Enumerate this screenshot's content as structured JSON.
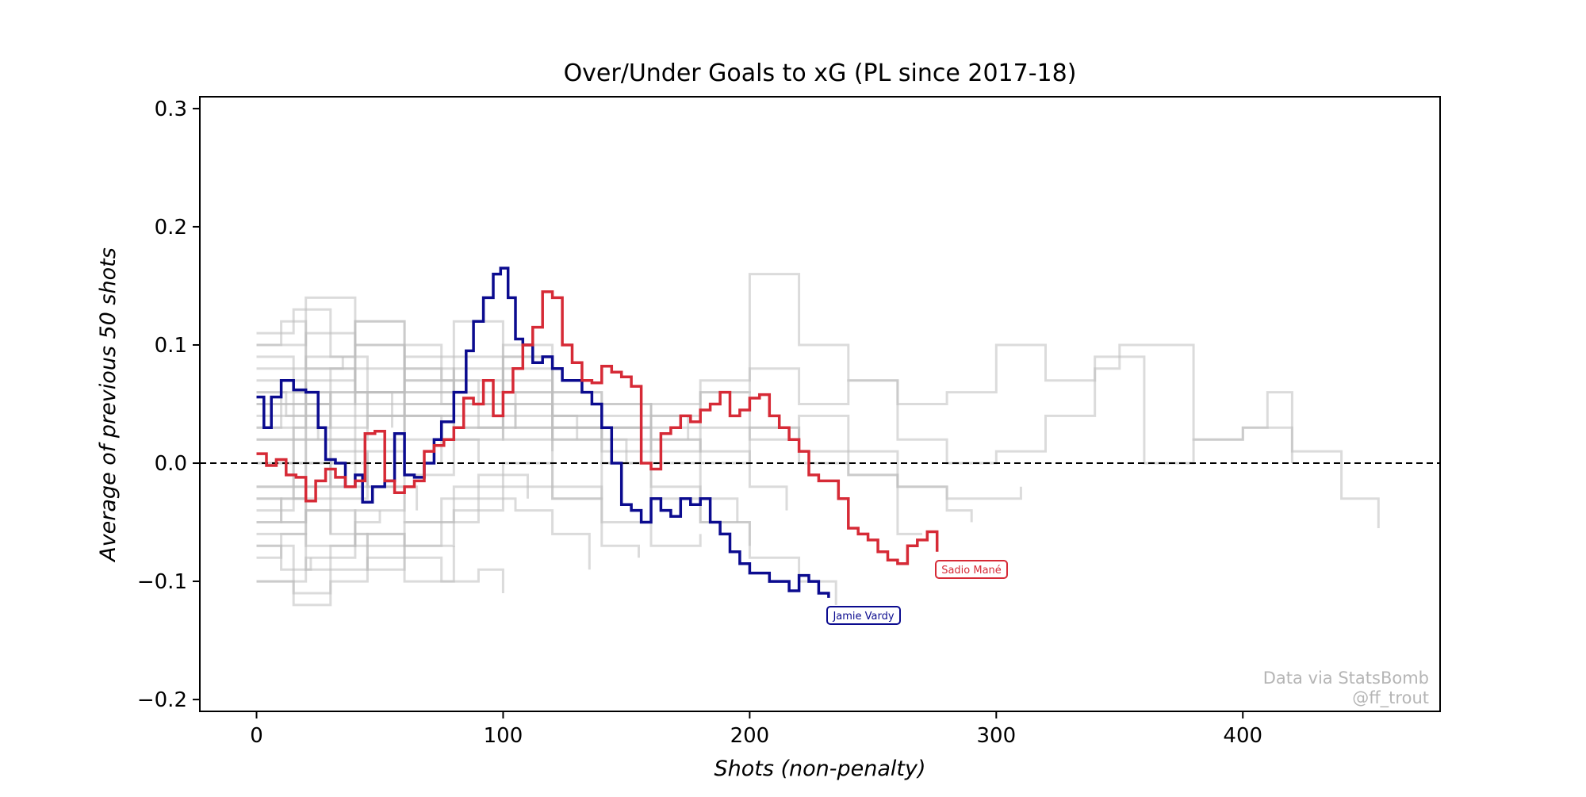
{
  "chart_data": {
    "type": "line",
    "title": "Over/Under Goals to xG (PL since 2017-18)",
    "xlabel": "Shots (non-penalty)",
    "ylabel": "Average of previous 50 shots",
    "xlim": [
      -23,
      480
    ],
    "ylim": [
      -0.21,
      0.31
    ],
    "x_ticks": [
      0,
      100,
      200,
      300,
      400
    ],
    "x_tick_labels": [
      "0",
      "100",
      "200",
      "300",
      "400"
    ],
    "y_ticks": [
      -0.2,
      -0.1,
      0.0,
      0.1,
      0.2,
      0.3
    ],
    "y_tick_labels": [
      "−0.2",
      "−0.1",
      "0.0",
      "0.1",
      "0.2",
      "0.3"
    ],
    "reference_line": {
      "y": 0.0,
      "style": "dashed",
      "color": "#000000"
    },
    "grid": false,
    "legend": "none",
    "background_series_color": "#bdbdbd",
    "highlighted_series": [
      {
        "name": "Jamie Vardy",
        "color": "#0b0b8f",
        "x": [
          0,
          3,
          6,
          10,
          15,
          20,
          25,
          28,
          32,
          36,
          40,
          43,
          47,
          52,
          56,
          60,
          64,
          68,
          72,
          75,
          80,
          85,
          88,
          92,
          96,
          99,
          102,
          105,
          108,
          112,
          116,
          120,
          124,
          128,
          132,
          136,
          140,
          144,
          148,
          152,
          156,
          160,
          164,
          168,
          172,
          176,
          180,
          184,
          188,
          192,
          196,
          200,
          204,
          208,
          212,
          216,
          220,
          224,
          228,
          232
        ],
        "y": [
          0.056,
          0.03,
          0.056,
          0.07,
          0.062,
          0.06,
          0.03,
          0.003,
          0.0,
          -0.02,
          -0.01,
          -0.033,
          -0.02,
          -0.015,
          0.025,
          -0.01,
          -0.012,
          0.0,
          0.02,
          0.035,
          0.06,
          0.095,
          0.12,
          0.14,
          0.16,
          0.165,
          0.14,
          0.105,
          0.1,
          0.085,
          0.09,
          0.08,
          0.07,
          0.07,
          0.06,
          0.05,
          0.03,
          0.0,
          -0.035,
          -0.04,
          -0.05,
          -0.03,
          -0.04,
          -0.045,
          -0.03,
          -0.035,
          -0.03,
          -0.05,
          -0.06,
          -0.075,
          -0.085,
          -0.093,
          -0.093,
          -0.1,
          -0.1,
          -0.108,
          -0.095,
          -0.1,
          -0.11,
          -0.114
        ]
      },
      {
        "name": "Sadio Mané",
        "color": "#d62a36",
        "x": [
          0,
          4,
          8,
          12,
          16,
          20,
          24,
          28,
          32,
          36,
          40,
          44,
          48,
          52,
          56,
          60,
          64,
          68,
          72,
          76,
          80,
          84,
          88,
          92,
          96,
          100,
          104,
          108,
          112,
          116,
          120,
          124,
          128,
          132,
          136,
          140,
          144,
          148,
          152,
          156,
          160,
          164,
          168,
          172,
          176,
          180,
          184,
          188,
          192,
          196,
          200,
          204,
          208,
          212,
          216,
          220,
          224,
          228,
          232,
          236,
          240,
          244,
          248,
          252,
          256,
          260,
          264,
          268,
          272,
          276
        ],
        "y": [
          0.008,
          -0.002,
          0.003,
          -0.01,
          -0.012,
          -0.032,
          -0.015,
          -0.005,
          -0.012,
          -0.02,
          -0.015,
          0.025,
          0.027,
          -0.015,
          -0.025,
          -0.02,
          -0.015,
          0.01,
          0.015,
          0.02,
          0.03,
          0.055,
          0.05,
          0.07,
          0.04,
          0.06,
          0.08,
          0.1,
          0.115,
          0.145,
          0.14,
          0.1,
          0.085,
          0.07,
          0.068,
          0.082,
          0.077,
          0.073,
          0.065,
          0.0,
          -0.005,
          0.025,
          0.03,
          0.04,
          0.035,
          0.045,
          0.05,
          0.06,
          0.04,
          0.045,
          0.055,
          0.058,
          0.04,
          0.03,
          0.02,
          0.01,
          -0.01,
          -0.015,
          -0.015,
          -0.03,
          -0.055,
          -0.06,
          -0.065,
          -0.075,
          -0.082,
          -0.085,
          -0.07,
          -0.065,
          -0.058,
          -0.075
        ]
      }
    ],
    "background_series": [
      {
        "x": [
          0,
          20,
          40,
          60,
          80,
          100,
          120,
          140,
          160,
          180,
          200,
          210,
          220,
          240,
          260,
          280,
          300,
          320,
          340,
          360,
          380,
          400,
          410,
          420,
          440,
          455
        ],
        "y": [
          0.02,
          0.05,
          0.08,
          0.04,
          0.06,
          0.09,
          0.05,
          0.03,
          0.05,
          0.07,
          0.16,
          0.16,
          0.1,
          0.07,
          0.05,
          0.06,
          0.1,
          0.07,
          0.09,
          0.0,
          0.02,
          0.03,
          0.06,
          0.01,
          -0.03,
          -0.055
        ]
      },
      {
        "x": [
          0,
          20,
          40,
          60,
          80,
          100,
          120,
          140,
          160,
          180,
          200,
          220,
          240,
          260,
          280,
          300,
          320,
          340,
          350,
          380,
          400,
          420
        ],
        "y": [
          -0.02,
          0.02,
          0.04,
          0.05,
          0.07,
          0.09,
          0.06,
          0.05,
          0.04,
          0.06,
          0.08,
          0.05,
          0.07,
          0.02,
          0.0,
          0.01,
          0.04,
          0.08,
          0.1,
          0.02,
          0.03,
          0.0
        ]
      },
      {
        "x": [
          0,
          20,
          40,
          60,
          80,
          100,
          120,
          140,
          160,
          180,
          200,
          220,
          240,
          260,
          280,
          300,
          310
        ],
        "y": [
          0.03,
          0.06,
          0.12,
          0.07,
          0.04,
          0.02,
          0.03,
          0.05,
          0.02,
          0.0,
          0.03,
          0.01,
          -0.01,
          -0.02,
          -0.03,
          -0.03,
          -0.02
        ]
      },
      {
        "x": [
          0,
          20,
          40,
          60,
          80,
          100,
          120,
          140,
          160,
          180,
          200,
          220,
          240,
          260,
          280,
          290
        ],
        "y": [
          0.05,
          0.07,
          0.1,
          0.06,
          0.05,
          0.08,
          0.04,
          0.02,
          0.01,
          0.03,
          0.02,
          0.04,
          0.01,
          -0.02,
          -0.04,
          -0.05
        ]
      },
      {
        "x": [
          0,
          20,
          40,
          60,
          80,
          100,
          120,
          140,
          160,
          180,
          200,
          220,
          240,
          260,
          270
        ],
        "y": [
          0.0,
          0.04,
          0.06,
          0.04,
          0.08,
          0.04,
          0.02,
          0.01,
          0.03,
          0.06,
          0.03,
          0.0,
          -0.01,
          -0.06,
          -0.06
        ]
      },
      {
        "x": [
          0,
          20,
          40,
          60,
          80,
          100,
          120,
          140,
          160,
          180,
          200,
          220,
          235
        ],
        "y": [
          -0.05,
          -0.02,
          0.02,
          0.05,
          0.03,
          0.06,
          0.03,
          0.0,
          -0.02,
          -0.05,
          -0.08,
          -0.1,
          -0.12
        ]
      },
      {
        "x": [
          0,
          20,
          40,
          60,
          80,
          100,
          120,
          140,
          160,
          180,
          200,
          215
        ],
        "y": [
          0.08,
          0.11,
          0.06,
          0.09,
          0.12,
          0.05,
          0.03,
          0.04,
          0.02,
          0.01,
          -0.02,
          -0.04
        ]
      },
      {
        "x": [
          0,
          20,
          40,
          60,
          80,
          100,
          120,
          140,
          160,
          180,
          200
        ],
        "y": [
          -0.1,
          -0.08,
          -0.06,
          -0.07,
          -0.04,
          -0.02,
          -0.03,
          0.0,
          -0.03,
          -0.05,
          -0.07
        ]
      },
      {
        "x": [
          0,
          20,
          40,
          60,
          80,
          100,
          120,
          140,
          160,
          180,
          195
        ],
        "y": [
          0.1,
          0.14,
          0.1,
          0.06,
          0.03,
          0.05,
          0.02,
          0.03,
          0.0,
          -0.03,
          -0.05
        ]
      },
      {
        "x": [
          0,
          20,
          40,
          60,
          80,
          100,
          120,
          140,
          160,
          180
        ],
        "y": [
          -0.03,
          -0.07,
          -0.04,
          -0.01,
          0.02,
          0.03,
          -0.02,
          -0.05,
          -0.07,
          -0.06
        ]
      },
      {
        "x": [
          0,
          20,
          40,
          60,
          80,
          100,
          120,
          140,
          160,
          175
        ],
        "y": [
          0.06,
          0.08,
          0.05,
          0.07,
          0.09,
          0.1,
          0.06,
          0.03,
          0.04,
          0.02
        ]
      },
      {
        "x": [
          0,
          20,
          40,
          60,
          80,
          100,
          120,
          140,
          155
        ],
        "y": [
          -0.06,
          -0.04,
          -0.07,
          -0.05,
          -0.02,
          0.0,
          -0.03,
          -0.07,
          -0.08
        ]
      },
      {
        "x": [
          0,
          20,
          40,
          60,
          80,
          100,
          120,
          140,
          150
        ],
        "y": [
          0.04,
          0.09,
          0.12,
          0.08,
          0.05,
          0.07,
          0.04,
          0.02,
          0.0
        ]
      },
      {
        "x": [
          0,
          15,
          30,
          45,
          60,
          75,
          90,
          105,
          120,
          135
        ],
        "y": [
          0.0,
          -0.03,
          -0.06,
          -0.09,
          -0.07,
          -0.05,
          -0.03,
          -0.04,
          -0.06,
          -0.09
        ]
      },
      {
        "x": [
          0,
          15,
          30,
          45,
          60,
          75,
          90,
          105,
          120,
          130
        ],
        "y": [
          0.11,
          0.13,
          0.09,
          0.06,
          0.08,
          0.05,
          0.03,
          0.06,
          0.04,
          0.02
        ]
      },
      {
        "x": [
          0,
          15,
          30,
          45,
          60,
          75,
          90,
          100
        ],
        "y": [
          -0.07,
          -0.11,
          -0.09,
          -0.06,
          -0.08,
          -0.1,
          -0.09,
          -0.11
        ]
      },
      {
        "x": [
          0,
          15,
          30,
          45,
          60,
          75,
          90,
          105,
          120
        ],
        "y": [
          0.07,
          0.05,
          0.03,
          0.06,
          0.1,
          0.07,
          0.05,
          0.03,
          0.01
        ]
      },
      {
        "x": [
          0,
          15,
          30,
          45,
          60,
          75,
          90,
          110
        ],
        "y": [
          -0.04,
          -0.02,
          0.01,
          -0.02,
          -0.05,
          -0.03,
          -0.01,
          -0.03
        ]
      },
      {
        "x": [
          0,
          15,
          30,
          45,
          60,
          75,
          90
        ],
        "y": [
          0.02,
          0.0,
          -0.03,
          0.01,
          0.04,
          0.02,
          0.0
        ]
      },
      {
        "x": [
          0,
          15,
          30,
          45,
          60,
          80
        ],
        "y": [
          -0.1,
          -0.12,
          -0.1,
          -0.08,
          -0.1,
          -0.07
        ]
      },
      {
        "x": [
          0,
          15,
          30,
          45,
          60,
          75
        ],
        "y": [
          0.09,
          0.06,
          0.02,
          0.04,
          0.02,
          0.0
        ]
      },
      {
        "x": [
          0,
          15,
          30,
          45,
          60
        ],
        "y": [
          -0.02,
          0.03,
          0.06,
          0.04,
          0.06
        ]
      },
      {
        "x": [
          0,
          15,
          30,
          45,
          65
        ],
        "y": [
          0.05,
          0.02,
          0.0,
          -0.02,
          -0.04
        ]
      },
      {
        "x": [
          0,
          10,
          20,
          30,
          40,
          50
        ],
        "y": [
          -0.08,
          -0.06,
          -0.09,
          -0.07,
          -0.05,
          -0.04
        ]
      },
      {
        "x": [
          0,
          10,
          20,
          30,
          40,
          55
        ],
        "y": [
          0.03,
          0.07,
          0.05,
          0.08,
          0.06,
          0.03
        ]
      },
      {
        "x": [
          0,
          10,
          20,
          30,
          45
        ],
        "y": [
          -0.05,
          -0.03,
          0.0,
          -0.02,
          -0.01
        ]
      },
      {
        "x": [
          0,
          10,
          20,
          35
        ],
        "y": [
          0.1,
          0.12,
          0.08,
          0.09
        ]
      },
      {
        "x": [
          0,
          10,
          20,
          30
        ],
        "y": [
          -0.03,
          -0.05,
          -0.04,
          -0.06
        ]
      },
      {
        "x": [
          0,
          12,
          25
        ],
        "y": [
          0.06,
          0.04,
          0.02
        ]
      },
      {
        "x": [
          0,
          10,
          22
        ],
        "y": [
          -0.07,
          -0.09,
          -0.08
        ]
      }
    ]
  },
  "labels": {
    "vardy": "Jamie Vardy",
    "mane": "Sadio Mané"
  },
  "credits": {
    "line1": "Data via StatsBomb",
    "line2": "@ff_trout"
  }
}
